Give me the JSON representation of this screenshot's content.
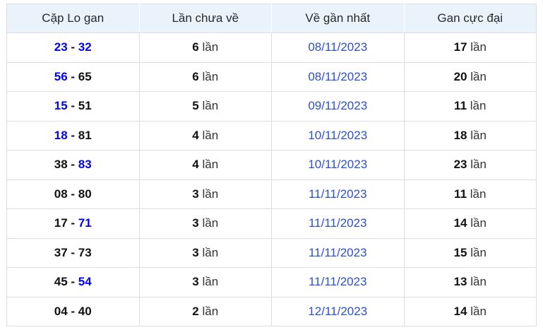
{
  "colors": {
    "header_bg": "#eaf3fb",
    "header_text": "#24292e",
    "border": "#dddddd",
    "pair_link_blue": "#0202f2",
    "date_blue": "#2b50c8",
    "bold_number": "#111111",
    "body_text": "#333333"
  },
  "table": {
    "columns": [
      {
        "label": "Cặp Lo gan"
      },
      {
        "label": "Lần chưa về"
      },
      {
        "label": "Về gần nhất"
      },
      {
        "label": "Gan cực đại"
      }
    ],
    "separator": "-",
    "unit": "lần",
    "rows": [
      {
        "pair": {
          "first": "23",
          "first_blue": true,
          "second": "32",
          "second_blue": true
        },
        "missed": "6",
        "last_seen": "08/11/2023",
        "max_gap": "17"
      },
      {
        "pair": {
          "first": "56",
          "first_blue": true,
          "second": "65",
          "second_blue": false
        },
        "missed": "6",
        "last_seen": "08/11/2023",
        "max_gap": "20"
      },
      {
        "pair": {
          "first": "15",
          "first_blue": true,
          "second": "51",
          "second_blue": false
        },
        "missed": "5",
        "last_seen": "09/11/2023",
        "max_gap": "11"
      },
      {
        "pair": {
          "first": "18",
          "first_blue": true,
          "second": "81",
          "second_blue": false
        },
        "missed": "4",
        "last_seen": "10/11/2023",
        "max_gap": "18"
      },
      {
        "pair": {
          "first": "38",
          "first_blue": false,
          "second": "83",
          "second_blue": true
        },
        "missed": "4",
        "last_seen": "10/11/2023",
        "max_gap": "23"
      },
      {
        "pair": {
          "first": "08",
          "first_blue": false,
          "second": "80",
          "second_blue": false
        },
        "missed": "3",
        "last_seen": "11/11/2023",
        "max_gap": "11"
      },
      {
        "pair": {
          "first": "17",
          "first_blue": false,
          "second": "71",
          "second_blue": true
        },
        "missed": "3",
        "last_seen": "11/11/2023",
        "max_gap": "14"
      },
      {
        "pair": {
          "first": "37",
          "first_blue": false,
          "second": "73",
          "second_blue": false
        },
        "missed": "3",
        "last_seen": "11/11/2023",
        "max_gap": "15"
      },
      {
        "pair": {
          "first": "45",
          "first_blue": false,
          "second": "54",
          "second_blue": true
        },
        "missed": "3",
        "last_seen": "11/11/2023",
        "max_gap": "13"
      },
      {
        "pair": {
          "first": "04",
          "first_blue": false,
          "second": "40",
          "second_blue": false
        },
        "missed": "2",
        "last_seen": "12/11/2023",
        "max_gap": "14"
      }
    ]
  }
}
